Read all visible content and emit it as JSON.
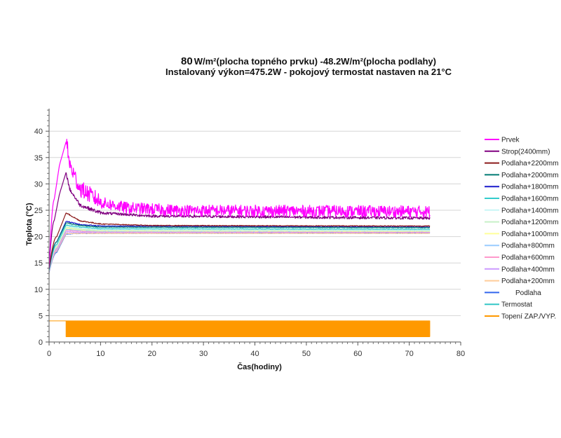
{
  "chart_data": {
    "type": "line",
    "title": {
      "line1_prefix": "80",
      "line1_rest": "W/m²(plocha topného prvku) -48.2W/m²(plocha podlahy)",
      "line2": "Instalovaný výkon=475.2W - pokojový termostat nastaven na 21°C"
    },
    "xlabel": "Čas(hodiny)",
    "ylabel": "Teplota (°C)",
    "xlim": [
      0,
      80
    ],
    "ylim": [
      0,
      44
    ],
    "xticks": [
      0,
      10,
      20,
      30,
      40,
      50,
      60,
      70,
      80
    ],
    "yticks": [
      0,
      5,
      10,
      15,
      20,
      25,
      30,
      35,
      40
    ],
    "grid": "horizontal",
    "legend_position": "right",
    "x_end": 74,
    "series": [
      {
        "name": "Prvek",
        "color": "#ff00ff",
        "points": [
          [
            0,
            14
          ],
          [
            1,
            27
          ],
          [
            2,
            33.5
          ],
          [
            3.3,
            38
          ],
          [
            4,
            33
          ],
          [
            6,
            28.5
          ],
          [
            10,
            26
          ],
          [
            15,
            25
          ],
          [
            25,
            24.5
          ],
          [
            74,
            24.3
          ]
        ],
        "noise": 1.6,
        "spiky": true
      },
      {
        "name": "Strop(2400mm)",
        "color": "#800080",
        "points": [
          [
            0,
            14
          ],
          [
            1,
            23
          ],
          [
            2,
            28
          ],
          [
            3.3,
            32.2
          ],
          [
            4,
            29
          ],
          [
            6,
            26
          ],
          [
            10,
            24.5
          ],
          [
            20,
            23.9
          ],
          [
            74,
            23.5
          ]
        ],
        "noise": 0.5
      },
      {
        "name": "Podlaha+2200mm",
        "color": "#8b1a1a",
        "points": [
          [
            0,
            14
          ],
          [
            1.5,
            20
          ],
          [
            3.3,
            24.5
          ],
          [
            6,
            23
          ],
          [
            10,
            22.4
          ],
          [
            20,
            22.1
          ],
          [
            74,
            22.0
          ]
        ],
        "noise": 0.15
      },
      {
        "name": "Podlaha+2000mm",
        "color": "#007a73",
        "points": [
          [
            0,
            14
          ],
          [
            1.5,
            19
          ],
          [
            3.3,
            22.6
          ],
          [
            6,
            22.1
          ],
          [
            10,
            21.8
          ],
          [
            74,
            21.7
          ]
        ],
        "noise": 0.1
      },
      {
        "name": "Podlaha+1800mm",
        "color": "#1a1acc",
        "points": [
          [
            0,
            13.8
          ],
          [
            1.5,
            19
          ],
          [
            3.3,
            22.9
          ],
          [
            6,
            22.3
          ],
          [
            10,
            22
          ],
          [
            74,
            21.8
          ]
        ],
        "noise": 0.12
      },
      {
        "name": "Podlaha+1600mm",
        "color": "#33cccc",
        "points": [
          [
            0,
            13.6
          ],
          [
            1.5,
            18.5
          ],
          [
            3.3,
            22.2
          ],
          [
            6,
            21.8
          ],
          [
            10,
            21.5
          ],
          [
            74,
            21.4
          ]
        ],
        "noise": 0.1
      },
      {
        "name": "Podlaha+1400mm",
        "color": "#c8f5f5",
        "points": [
          [
            0,
            13.6
          ],
          [
            1.5,
            18.3
          ],
          [
            3.3,
            22
          ],
          [
            6,
            21.6
          ],
          [
            10,
            21.3
          ],
          [
            74,
            21.2
          ]
        ],
        "noise": 0.1
      },
      {
        "name": "Podlaha+1200mm",
        "color": "#c8f0c8",
        "points": [
          [
            0,
            13.5
          ],
          [
            1.5,
            18.2
          ],
          [
            3.3,
            21.8
          ],
          [
            6,
            21.4
          ],
          [
            10,
            21.2
          ],
          [
            74,
            21.1
          ]
        ],
        "noise": 0.1
      },
      {
        "name": "Podlaha+1000mm",
        "color": "#ffff99",
        "points": [
          [
            0,
            13.5
          ],
          [
            1.5,
            18
          ],
          [
            3.3,
            21.6
          ],
          [
            6,
            21.3
          ],
          [
            10,
            21.1
          ],
          [
            74,
            21.0
          ]
        ],
        "noise": 0.1
      },
      {
        "name": "Podlaha+800mm",
        "color": "#99ccff",
        "points": [
          [
            0,
            13.4
          ],
          [
            1.5,
            17.8
          ],
          [
            3.3,
            21.4
          ],
          [
            6,
            21.2
          ],
          [
            10,
            21.0
          ],
          [
            74,
            21.0
          ]
        ],
        "noise": 0.1
      },
      {
        "name": "Podlaha+600mm",
        "color": "#ff99cc",
        "points": [
          [
            0,
            13.4
          ],
          [
            1.5,
            17.6
          ],
          [
            3.3,
            21.2
          ],
          [
            6,
            21.0
          ],
          [
            10,
            20.9
          ],
          [
            74,
            20.9
          ]
        ],
        "noise": 0.1
      },
      {
        "name": "Podlaha+400mm",
        "color": "#cc99ff",
        "points": [
          [
            0,
            13.3
          ],
          [
            1.5,
            17.4
          ],
          [
            3.3,
            20.9
          ],
          [
            6,
            20.8
          ],
          [
            74,
            20.8
          ]
        ],
        "noise": 0.1
      },
      {
        "name": "Podlaha+200mm",
        "color": "#ffcc99",
        "points": [
          [
            0,
            13.3
          ],
          [
            1.5,
            17.2
          ],
          [
            3.3,
            20.6
          ],
          [
            6,
            20.6
          ],
          [
            74,
            20.6
          ]
        ],
        "noise": 0.08
      },
      {
        "name": "Podlaha",
        "color": "#3366ee",
        "points": [
          [
            0,
            13.2
          ],
          [
            1.5,
            17
          ],
          [
            3.3,
            20.5
          ],
          [
            6,
            20.6
          ],
          [
            74,
            20.7
          ]
        ],
        "noise": 0.08
      },
      {
        "name": "Termostat",
        "color": "#33c6c6",
        "points": [
          [
            0,
            13.5
          ],
          [
            1.5,
            18
          ],
          [
            3.3,
            21.4
          ],
          [
            6,
            21.3
          ],
          [
            74,
            21.2
          ]
        ],
        "noise": 0.08
      },
      {
        "name": "Topení ZAP./VYP.",
        "color": "#ff9900",
        "points": [
          [
            0,
            4
          ],
          [
            3.3,
            4
          ]
        ],
        "switching": {
          "from": 3.3,
          "to": 74,
          "low": 1,
          "high": 4
        }
      }
    ]
  }
}
